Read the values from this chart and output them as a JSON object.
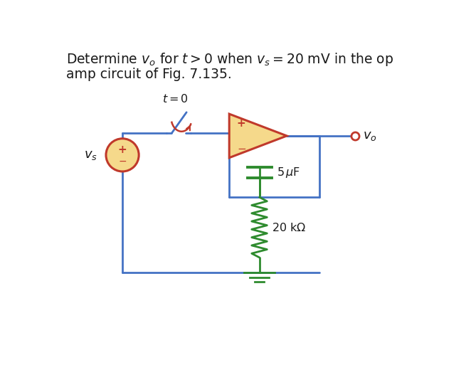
{
  "title_line1": "Determine $v_o$ for $t > 0$ when $v_s = 20$ mV in the op",
  "title_line2": "amp circuit of Fig. 7.135.",
  "wire_color": "#4472c4",
  "component_color": "#2e8b2e",
  "opamp_fill": "#f5d98b",
  "opamp_edge": "#c0392b",
  "source_fill": "#f5d98b",
  "source_edge": "#c0392b",
  "switch_arrow_color": "#c0392b",
  "text_color": "#1a1a1a",
  "label_t0": "$t = 0$",
  "label_vs": "$v_s$",
  "label_vo": "$v_o$",
  "label_cap": "$5\\,\\mu$F",
  "label_res": "$20$ k$\\Omega$",
  "bg_color": "#ffffff",
  "vo_circle_color": "#c0392b"
}
